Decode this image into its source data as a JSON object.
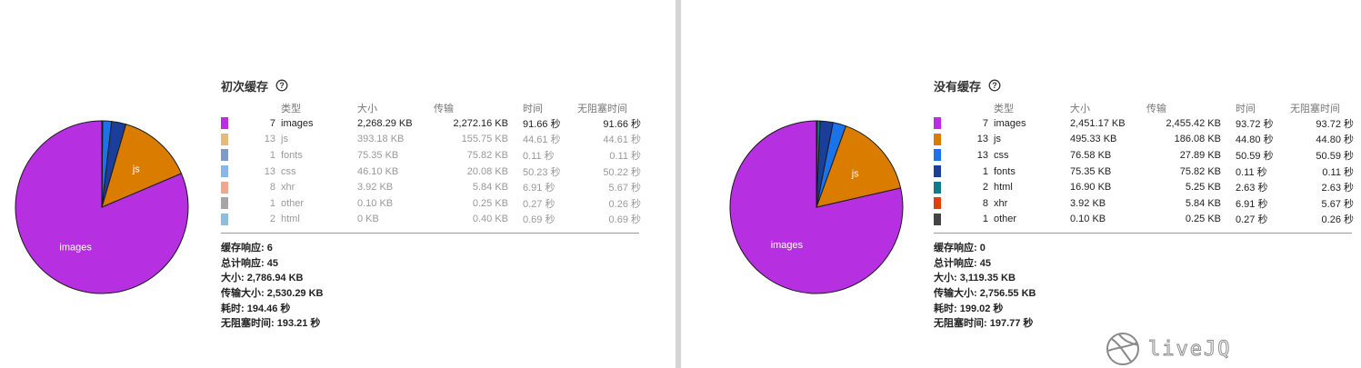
{
  "left": {
    "title": "初次缓存",
    "headers": [
      "类型",
      "大小",
      "传输",
      "时间",
      "无阻塞时间"
    ],
    "rows": [
      {
        "count": "7",
        "type": "images",
        "size": "2,268.29 KB",
        "transfer": "2,272.16 KB",
        "time": "91.66 秒",
        "nonblocking": "91.66 秒",
        "color": "#b62fe0",
        "faded": false
      },
      {
        "count": "13",
        "type": "js",
        "size": "393.18 KB",
        "transfer": "155.75 KB",
        "time": "44.61 秒",
        "nonblocking": "44.61 秒",
        "color": "#e0a050",
        "faded": true
      },
      {
        "count": "1",
        "type": "fonts",
        "size": "75.35 KB",
        "transfer": "75.82 KB",
        "time": "0.11 秒",
        "nonblocking": "0.11 秒",
        "color": "#5577bb",
        "faded": true
      },
      {
        "count": "13",
        "type": "css",
        "size": "46.10 KB",
        "transfer": "20.08 KB",
        "time": "50.23 秒",
        "nonblocking": "50.22 秒",
        "color": "#5fa0e6",
        "faded": true
      },
      {
        "count": "8",
        "type": "xhr",
        "size": "3.92 KB",
        "transfer": "5.84 KB",
        "time": "6.91 秒",
        "nonblocking": "5.67 秒",
        "color": "#ee8866",
        "faded": true
      },
      {
        "count": "1",
        "type": "other",
        "size": "0.10 KB",
        "transfer": "0.25 KB",
        "time": "0.27 秒",
        "nonblocking": "0.26 秒",
        "color": "#888888",
        "faded": true
      },
      {
        "count": "2",
        "type": "html",
        "size": "0 KB",
        "transfer": "0.40 KB",
        "time": "0.69 秒",
        "nonblocking": "0.69 秒",
        "color": "#66aad4",
        "faded": true
      }
    ],
    "summary": [
      {
        "label": "缓存响应:",
        "value": "6"
      },
      {
        "label": "总计响应:",
        "value": "45"
      },
      {
        "label": "大小:",
        "value": "2,786.94 KB"
      },
      {
        "label": "传输大小:",
        "value": "2,530.29 KB"
      },
      {
        "label": "耗时:",
        "value": "194.46 秒"
      },
      {
        "label": "无阻塞时间:",
        "value": "193.21 秒"
      }
    ]
  },
  "right": {
    "title": "没有缓存",
    "headers": [
      "类型",
      "大小",
      "传输",
      "时间",
      "无阻塞时间"
    ],
    "rows": [
      {
        "count": "7",
        "type": "images",
        "size": "2,451.17 KB",
        "transfer": "2,455.42 KB",
        "time": "93.72 秒",
        "nonblocking": "93.72 秒",
        "color": "#b62fe0",
        "faded": false
      },
      {
        "count": "13",
        "type": "js",
        "size": "495.33 KB",
        "transfer": "186.08 KB",
        "time": "44.80 秒",
        "nonblocking": "44.80 秒",
        "color": "#d97c00",
        "faded": false
      },
      {
        "count": "13",
        "type": "css",
        "size": "76.58 KB",
        "transfer": "27.89 KB",
        "time": "50.59 秒",
        "nonblocking": "50.59 秒",
        "color": "#1a73e8",
        "faded": false
      },
      {
        "count": "1",
        "type": "fonts",
        "size": "75.35 KB",
        "transfer": "75.82 KB",
        "time": "0.11 秒",
        "nonblocking": "0.11 秒",
        "color": "#1a3e9a",
        "faded": false
      },
      {
        "count": "2",
        "type": "html",
        "size": "16.90 KB",
        "transfer": "5.25 KB",
        "time": "2.63 秒",
        "nonblocking": "2.63 秒",
        "color": "#137a8a",
        "faded": false
      },
      {
        "count": "8",
        "type": "xhr",
        "size": "3.92 KB",
        "transfer": "5.84 KB",
        "time": "6.91 秒",
        "nonblocking": "5.67 秒",
        "color": "#e04010",
        "faded": false
      },
      {
        "count": "1",
        "type": "other",
        "size": "0.10 KB",
        "transfer": "0.25 KB",
        "time": "0.27 秒",
        "nonblocking": "0.26 秒",
        "color": "#444444",
        "faded": false
      }
    ],
    "summary": [
      {
        "label": "缓存响应:",
        "value": "0"
      },
      {
        "label": "总计响应:",
        "value": "45"
      },
      {
        "label": "大小:",
        "value": "3,119.35 KB"
      },
      {
        "label": "传输大小:",
        "value": "2,756.55 KB"
      },
      {
        "label": "耗时:",
        "value": "199.02 秒"
      },
      {
        "label": "无阻塞时间:",
        "value": "197.77 秒"
      }
    ]
  },
  "chart_data": [
    {
      "type": "pie",
      "title": "初次缓存",
      "slices": [
        {
          "label": "images",
          "value": 2268.29,
          "color": "#b62fe0",
          "show_label": true
        },
        {
          "label": "js",
          "value": 393.18,
          "color": "#d97c00",
          "show_label": true
        },
        {
          "label": "fonts",
          "value": 75.35,
          "color": "#1a3e9a",
          "show_label": false
        },
        {
          "label": "css",
          "value": 46.1,
          "color": "#1a73e8",
          "show_label": false
        },
        {
          "label": "xhr",
          "value": 3.92,
          "color": "#e04010",
          "show_label": false
        },
        {
          "label": "other",
          "value": 0.1,
          "color": "#444444",
          "show_label": false
        },
        {
          "label": "html",
          "value": 0,
          "color": "#137a8a",
          "show_label": false
        }
      ]
    },
    {
      "type": "pie",
      "title": "没有缓存",
      "slices": [
        {
          "label": "images",
          "value": 2451.17,
          "color": "#b62fe0",
          "show_label": true
        },
        {
          "label": "js",
          "value": 495.33,
          "color": "#d97c00",
          "show_label": true
        },
        {
          "label": "css",
          "value": 76.58,
          "color": "#1a73e8",
          "show_label": false
        },
        {
          "label": "fonts",
          "value": 75.35,
          "color": "#1a3e9a",
          "show_label": false
        },
        {
          "label": "html",
          "value": 16.9,
          "color": "#137a8a",
          "show_label": false
        },
        {
          "label": "xhr",
          "value": 3.92,
          "color": "#e04010",
          "show_label": false
        },
        {
          "label": "other",
          "value": 0.1,
          "color": "#444444",
          "show_label": false
        }
      ]
    }
  ],
  "watermark": {
    "text": "liveJQ"
  }
}
